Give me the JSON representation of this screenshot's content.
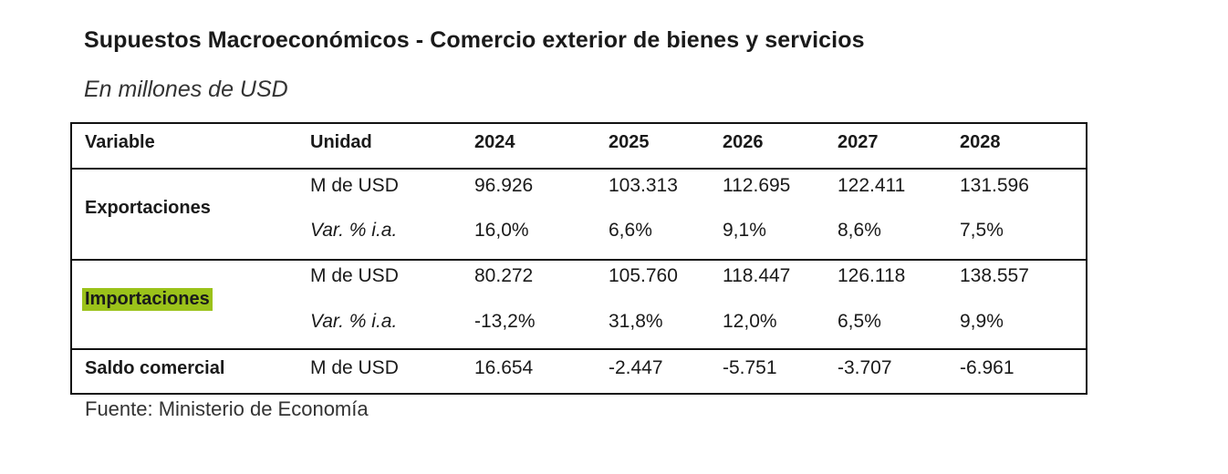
{
  "title": "Supuestos Macroeconómicos - Comercio exterior de bienes y servicios",
  "subtitle": "En millones de USD",
  "table": {
    "headers": [
      "Variable",
      "Unidad",
      "2024",
      "2025",
      "2026",
      "2027",
      "2028"
    ],
    "groups": [
      {
        "variable": "Exportaciones",
        "highlight": false,
        "rows": [
          {
            "unit": "M de USD",
            "values": [
              "96.926",
              "103.313",
              "112.695",
              "122.411",
              "131.596"
            ]
          },
          {
            "unit": "Var. % i.a.",
            "values": [
              "16,0%",
              "6,6%",
              "9,1%",
              "8,6%",
              "7,5%"
            ]
          }
        ]
      },
      {
        "variable": "Importaciones",
        "highlight": true,
        "highlight_color": "#9bc21a",
        "rows": [
          {
            "unit": "M de USD",
            "values": [
              "80.272",
              "105.760",
              "118.447",
              "126.118",
              "138.557"
            ]
          },
          {
            "unit": "Var. % i.a.",
            "values": [
              "-13,2%",
              "31,8%",
              "12,0%",
              "6,5%",
              "9,9%"
            ]
          }
        ]
      },
      {
        "variable": "Saldo comercial",
        "highlight": false,
        "rows": [
          {
            "unit": "M de USD",
            "values": [
              "16.654",
              "-2.447",
              "-5.751",
              "-3.707",
              "-6.961"
            ]
          }
        ]
      }
    ]
  },
  "source": "Fuente: Ministerio de Economía"
}
